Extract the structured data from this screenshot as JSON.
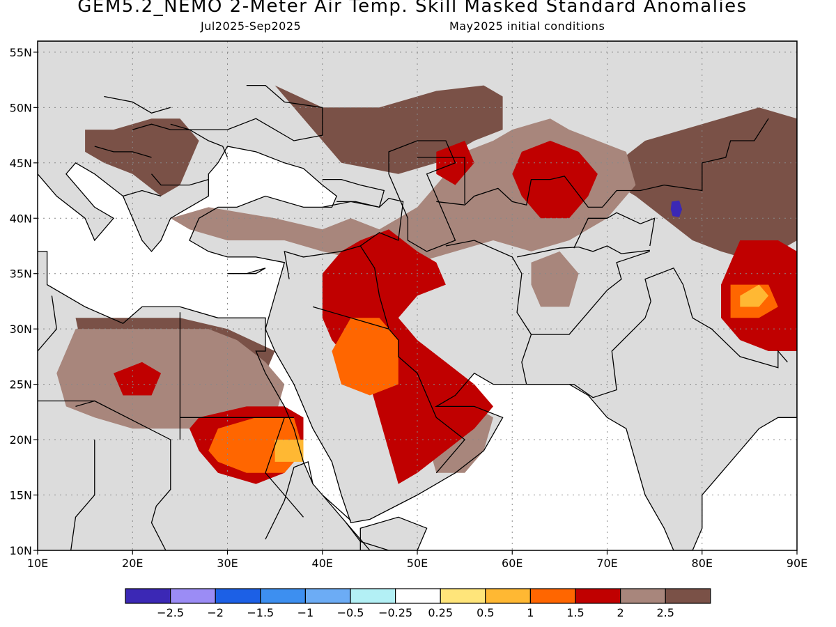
{
  "title": "GEM5.2_NEMO 2-Meter Air Temp. Skill Masked Standard Anomalies",
  "period": "Jul2025-Sep2025",
  "initial_conditions": "May2025 initial conditions",
  "map": {
    "lon_range": [
      10,
      90
    ],
    "lat_range": [
      10,
      56
    ],
    "lon_ticks": [
      "10E",
      "20E",
      "30E",
      "40E",
      "50E",
      "60E",
      "70E",
      "80E",
      "90E"
    ],
    "lat_ticks": [
      "10N",
      "15N",
      "20N",
      "25N",
      "30N",
      "35N",
      "40N",
      "45N",
      "50N",
      "55N"
    ],
    "grid": true,
    "land_color": "#dcdcdc",
    "ocean_color": "#ffffff",
    "regions": [
      {
        "level": "2.5",
        "color": "#7a5147",
        "poly": [
          [
            35,
            52
          ],
          [
            38,
            49
          ],
          [
            42,
            45
          ],
          [
            48,
            44
          ],
          [
            52,
            45
          ],
          [
            54,
            46
          ],
          [
            56,
            47
          ],
          [
            59,
            48
          ],
          [
            59,
            51
          ],
          [
            57,
            52
          ],
          [
            52,
            51.5
          ],
          [
            46,
            50
          ],
          [
            40,
            50
          ],
          [
            35,
            52
          ]
        ]
      },
      {
        "level": "2.5",
        "color": "#7a5147",
        "poly": [
          [
            15,
            48
          ],
          [
            18,
            48
          ],
          [
            22,
            49
          ],
          [
            25,
            49
          ],
          [
            27,
            47
          ],
          [
            26,
            45
          ],
          [
            25,
            43
          ],
          [
            23,
            42
          ],
          [
            20,
            44
          ],
          [
            17,
            45
          ],
          [
            15,
            46
          ],
          [
            15,
            48
          ]
        ]
      },
      {
        "level": "2.5",
        "color": "#7a5147",
        "poly": [
          [
            82,
            49
          ],
          [
            86,
            50
          ],
          [
            90,
            49
          ],
          [
            90,
            38
          ],
          [
            86,
            36
          ],
          [
            82,
            37
          ],
          [
            79,
            38
          ],
          [
            76,
            40
          ],
          [
            73,
            42
          ],
          [
            71,
            43
          ],
          [
            71,
            45
          ],
          [
            74,
            47
          ],
          [
            78,
            48
          ],
          [
            82,
            49
          ]
        ]
      },
      {
        "level": "2.5",
        "color": "#7a5147",
        "poly": [
          [
            14,
            31
          ],
          [
            20,
            31
          ],
          [
            25,
            31
          ],
          [
            30,
            30
          ],
          [
            35,
            28
          ],
          [
            34,
            26
          ],
          [
            30,
            26
          ],
          [
            25,
            26
          ],
          [
            20,
            26
          ],
          [
            15,
            27
          ],
          [
            14,
            31
          ]
        ]
      },
      {
        "level": "2",
        "color": "#a8867c",
        "poly": [
          [
            24,
            40
          ],
          [
            28,
            41
          ],
          [
            35,
            40
          ],
          [
            40,
            39
          ],
          [
            43,
            40
          ],
          [
            46,
            39
          ],
          [
            50,
            41
          ],
          [
            53,
            44
          ],
          [
            55,
            46
          ],
          [
            58,
            47
          ],
          [
            60,
            48
          ],
          [
            64,
            49
          ],
          [
            66,
            48
          ],
          [
            72,
            46
          ],
          [
            73,
            43
          ],
          [
            70,
            40
          ],
          [
            66,
            38
          ],
          [
            62,
            37
          ],
          [
            58,
            38
          ],
          [
            54,
            37
          ],
          [
            50,
            36
          ],
          [
            45,
            36
          ],
          [
            40,
            37
          ],
          [
            36,
            38
          ],
          [
            30,
            38
          ],
          [
            26,
            39
          ],
          [
            24,
            40
          ]
        ]
      },
      {
        "level": "2",
        "color": "#a8867c",
        "poly": [
          [
            14,
            30
          ],
          [
            18,
            30
          ],
          [
            24,
            30
          ],
          [
            28,
            30
          ],
          [
            31,
            29
          ],
          [
            34,
            27
          ],
          [
            36,
            25
          ],
          [
            35,
            22
          ],
          [
            30,
            21
          ],
          [
            24,
            21
          ],
          [
            20,
            21
          ],
          [
            16,
            22
          ],
          [
            13,
            23
          ],
          [
            12,
            26
          ],
          [
            14,
            30
          ]
        ]
      },
      {
        "level": "2",
        "color": "#a8867c",
        "poly": [
          [
            52,
            23
          ],
          [
            56,
            23
          ],
          [
            58,
            22
          ],
          [
            57,
            19
          ],
          [
            55,
            17
          ],
          [
            52,
            17
          ],
          [
            51,
            20
          ],
          [
            52,
            23
          ]
        ]
      },
      {
        "level": "2",
        "color": "#a8867c",
        "poly": [
          [
            62,
            36
          ],
          [
            65,
            37
          ],
          [
            67,
            35
          ],
          [
            66,
            32
          ],
          [
            63,
            32
          ],
          [
            62,
            34
          ],
          [
            62,
            36
          ]
        ]
      },
      {
        "level": "1.5",
        "color": "#c00000",
        "poly": [
          [
            44,
            38
          ],
          [
            47,
            39
          ],
          [
            50,
            37
          ],
          [
            52,
            36
          ],
          [
            53,
            34
          ],
          [
            50,
            33
          ],
          [
            48,
            31
          ],
          [
            50,
            29
          ],
          [
            53,
            27
          ],
          [
            56,
            25
          ],
          [
            58,
            23
          ],
          [
            56,
            21
          ],
          [
            53,
            19
          ],
          [
            50,
            17
          ],
          [
            48,
            16
          ],
          [
            47,
            19
          ],
          [
            46,
            22
          ],
          [
            45,
            25
          ],
          [
            43,
            27
          ],
          [
            41,
            29
          ],
          [
            40,
            31
          ],
          [
            40,
            35
          ],
          [
            42,
            37
          ],
          [
            44,
            38
          ]
        ]
      },
      {
        "level": "1.5",
        "color": "#c00000",
        "poly": [
          [
            27,
            22
          ],
          [
            32,
            23
          ],
          [
            36,
            23
          ],
          [
            38,
            22
          ],
          [
            38,
            19
          ],
          [
            36,
            17
          ],
          [
            33,
            16
          ],
          [
            29,
            17
          ],
          [
            27,
            19
          ],
          [
            26,
            21
          ],
          [
            27,
            22
          ]
        ]
      },
      {
        "level": "1.5",
        "color": "#c00000",
        "poly": [
          [
            61,
            46
          ],
          [
            64,
            47
          ],
          [
            67,
            46
          ],
          [
            69,
            44
          ],
          [
            68,
            42
          ],
          [
            66,
            40
          ],
          [
            63,
            40
          ],
          [
            61,
            42
          ],
          [
            60,
            44
          ],
          [
            61,
            46
          ]
        ]
      },
      {
        "level": "1.5",
        "color": "#c00000",
        "poly": [
          [
            84,
            38
          ],
          [
            88,
            38
          ],
          [
            90,
            37
          ],
          [
            90,
            28
          ],
          [
            87,
            28
          ],
          [
            84,
            29
          ],
          [
            82,
            31
          ],
          [
            82,
            34
          ],
          [
            84,
            38
          ]
        ]
      },
      {
        "level": "1.5",
        "color": "#c00000",
        "poly": [
          [
            52,
            46
          ],
          [
            55,
            47
          ],
          [
            56,
            45
          ],
          [
            54,
            43
          ],
          [
            52,
            44
          ],
          [
            52,
            46
          ]
        ]
      },
      {
        "level": "1.5",
        "color": "#c00000",
        "poly": [
          [
            18,
            26
          ],
          [
            21,
            27
          ],
          [
            23,
            26
          ],
          [
            22,
            24
          ],
          [
            19,
            24
          ],
          [
            18,
            26
          ]
        ]
      },
      {
        "level": "1",
        "color": "#ff6600",
        "poly": [
          [
            43,
            31
          ],
          [
            46,
            31
          ],
          [
            48,
            29
          ],
          [
            48,
            25
          ],
          [
            45,
            24
          ],
          [
            42,
            25
          ],
          [
            41,
            28
          ],
          [
            43,
            31
          ]
        ]
      },
      {
        "level": "1",
        "color": "#ff6600",
        "poly": [
          [
            29,
            21
          ],
          [
            33,
            22
          ],
          [
            37,
            22
          ],
          [
            38,
            19
          ],
          [
            36,
            17
          ],
          [
            32,
            17
          ],
          [
            29,
            18
          ],
          [
            28,
            19
          ],
          [
            29,
            21
          ]
        ]
      },
      {
        "level": "1",
        "color": "#ff6600",
        "poly": [
          [
            83,
            34
          ],
          [
            87,
            34
          ],
          [
            88,
            32
          ],
          [
            86,
            31
          ],
          [
            83,
            31
          ],
          [
            83,
            34
          ]
        ]
      },
      {
        "level": "0.5",
        "color": "#ffb833",
        "poly": [
          [
            35,
            20
          ],
          [
            38,
            20
          ],
          [
            38,
            18
          ],
          [
            35,
            18
          ],
          [
            35,
            20
          ]
        ]
      },
      {
        "level": "0.5",
        "color": "#ffb833",
        "poly": [
          [
            84,
            33
          ],
          [
            86,
            34
          ],
          [
            87,
            33
          ],
          [
            86,
            32
          ],
          [
            84,
            32
          ],
          [
            84,
            33
          ]
        ]
      },
      {
        "level": "-2.5",
        "color": "#3b28b5",
        "poly": [
          [
            76.8,
            41.5
          ],
          [
            77.6,
            41.6
          ],
          [
            77.9,
            40.8
          ],
          [
            77.6,
            40.1
          ],
          [
            76.9,
            40.2
          ],
          [
            76.7,
            40.8
          ],
          [
            76.8,
            41.5
          ]
        ]
      }
    ],
    "rivers_note": ""
  },
  "colorbar": {
    "colors": [
      "#3b28b5",
      "#9b8cf5",
      "#1c60e6",
      "#3d8ff0",
      "#6cacf5",
      "#b3f0f5",
      "#ffffff",
      "#ffe57a",
      "#ffb833",
      "#ff6600",
      "#c00000",
      "#a8867c",
      "#7a5147"
    ],
    "labels": [
      "−2.5",
      "−2",
      "−1.5",
      "−1",
      "−0.5",
      "−0.25",
      "0.25",
      "0.5",
      "1",
      "1.5",
      "2",
      "2.5"
    ]
  }
}
